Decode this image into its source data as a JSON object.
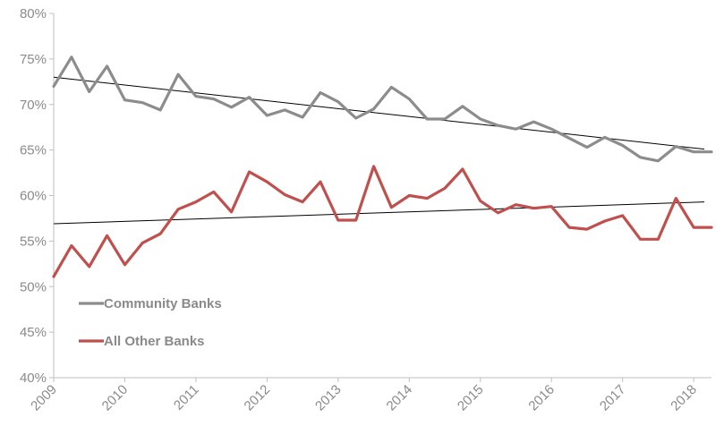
{
  "chart_data": {
    "type": "line",
    "ylim": [
      40,
      80
    ],
    "y_ticks": [
      40,
      45,
      50,
      55,
      60,
      65,
      70,
      75,
      80
    ],
    "y_tick_labels": [
      "40%",
      "45%",
      "50%",
      "55%",
      "60%",
      "65%",
      "70%",
      "75%",
      "80%"
    ],
    "x_range": [
      2009,
      2018.25
    ],
    "x_ticks": [
      2009,
      2010,
      2011,
      2012,
      2013,
      2014,
      2015,
      2016,
      2017,
      2018
    ],
    "x_tick_labels": [
      "2009",
      "2010",
      "2011",
      "2012",
      "2013",
      "2014",
      "2015",
      "2016",
      "2017",
      "2018"
    ],
    "x": [
      2009.0,
      2009.25,
      2009.5,
      2009.75,
      2010.0,
      2010.25,
      2010.5,
      2010.75,
      2011.0,
      2011.25,
      2011.5,
      2011.75,
      2012.0,
      2012.25,
      2012.5,
      2012.75,
      2013.0,
      2013.25,
      2013.5,
      2013.75,
      2014.0,
      2014.25,
      2014.5,
      2014.75,
      2015.0,
      2015.25,
      2015.5,
      2015.75,
      2016.0,
      2016.25,
      2016.5,
      2016.75,
      2017.0,
      2017.25,
      2017.5,
      2017.75,
      2018.0,
      2018.25
    ],
    "series": [
      {
        "name": "Community Banks",
        "color": "#8c8c8c",
        "values": [
          72.0,
          75.2,
          71.4,
          74.2,
          70.5,
          70.2,
          69.4,
          73.3,
          70.9,
          70.6,
          69.7,
          70.8,
          68.8,
          69.4,
          68.6,
          71.3,
          70.3,
          68.5,
          69.5,
          71.9,
          70.6,
          68.4,
          68.4,
          69.8,
          68.4,
          67.7,
          67.3,
          68.1,
          67.3,
          66.3,
          65.3,
          66.4,
          65.5,
          64.2,
          63.8,
          65.4,
          64.8,
          64.8
        ]
      },
      {
        "name": "All Other Banks",
        "color": "#c0504d",
        "values": [
          51.1,
          54.5,
          52.2,
          55.6,
          52.4,
          54.8,
          55.8,
          58.5,
          59.3,
          60.4,
          58.2,
          62.6,
          61.5,
          60.1,
          59.3,
          61.5,
          57.3,
          57.3,
          63.2,
          58.7,
          60.0,
          59.7,
          60.8,
          62.9,
          59.4,
          58.1,
          59.0,
          58.6,
          58.8,
          56.5,
          56.3,
          57.2,
          57.8,
          55.2,
          55.2,
          59.7,
          56.5,
          56.5
        ]
      }
    ],
    "trendlines": [
      {
        "series": "Community Banks",
        "x": [
          2009,
          2018.15
        ],
        "y": [
          73.0,
          65.1
        ],
        "color": "#000000"
      },
      {
        "series": "All Other Banks",
        "x": [
          2009,
          2018.15
        ],
        "y": [
          56.9,
          59.3
        ],
        "color": "#000000"
      }
    ],
    "legend": {
      "placement": "lower-left",
      "entries": [
        {
          "label": "Community Banks",
          "color": "#8c8c8c"
        },
        {
          "label": "All Other Banks",
          "color": "#c0504d"
        }
      ]
    },
    "grid": false
  }
}
